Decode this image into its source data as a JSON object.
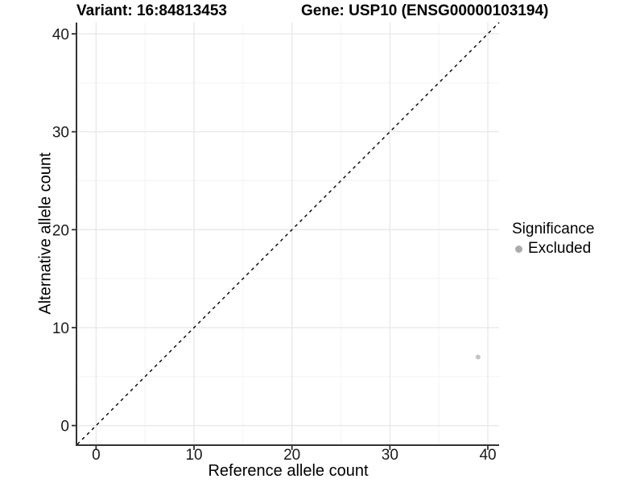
{
  "chart_data": {
    "type": "scatter",
    "title_left": "Variant: 16:84813453",
    "title_right": "Gene: USP10 (ENSG00000103194)",
    "xlabel": "Reference allele count",
    "ylabel": "Alternative allele count",
    "xlim": [
      -1.92,
      41.15
    ],
    "ylim": [
      -1.92,
      41.15
    ],
    "x_ticks": [
      0,
      10,
      20,
      30,
      40
    ],
    "y_ticks": [
      0,
      10,
      20,
      30,
      40
    ],
    "minor_ticks": [
      5,
      15,
      25,
      35
    ],
    "grid": "major and minor gridlines, light gray on white panel",
    "reference_line": {
      "type": "identity y=x",
      "style": "dashed",
      "color": "#000000"
    },
    "series": [
      {
        "name": "Excluded",
        "color": "#c3c3c3",
        "points": [
          {
            "x": 39,
            "y": 7
          }
        ]
      }
    ],
    "legend": {
      "title": "Significance",
      "position": "right",
      "entries": [
        {
          "label": "Excluded",
          "color": "#ababab"
        }
      ]
    }
  },
  "colors": {
    "background": "#ffffff",
    "grid_major": "#e8e8e8",
    "grid_minor": "#f3f3f3",
    "axis": "#333333",
    "tick_text": "#1a1a1a",
    "point": "#c3c3c3"
  }
}
